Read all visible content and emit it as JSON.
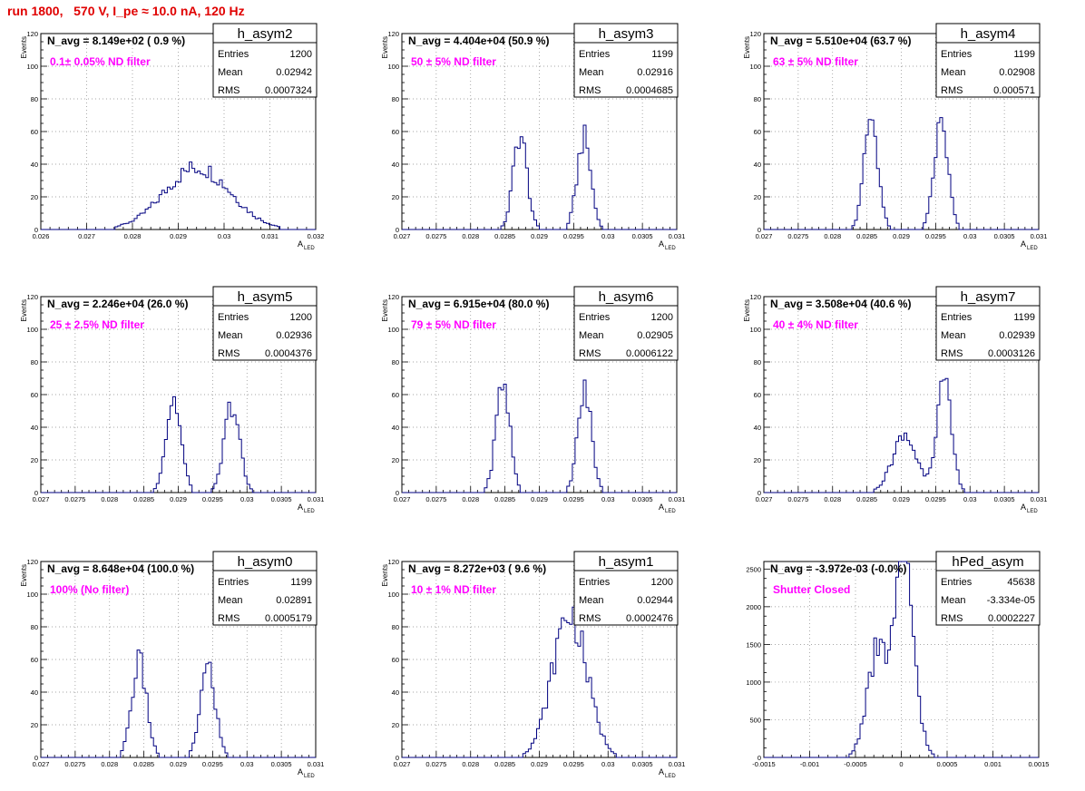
{
  "page": {
    "title": "run 1800,   570 V, I_pe ≈ 10.0 nA, 120 Hz"
  },
  "chart_data": [
    {
      "type": "histogram",
      "name": "h_asym2",
      "n_avg_label": "N_avg = 8.149e+02 ( 0.9 %)",
      "annotation": "0.1± 0.05% ND filter",
      "stats": [
        [
          "Entries",
          "1200"
        ],
        [
          "Mean",
          "0.02942"
        ],
        [
          "RMS",
          "0.0007324"
        ]
      ],
      "xlim": [
        0.026,
        0.032
      ],
      "ylim": [
        0,
        120
      ],
      "xticks": [
        0.026,
        0.027,
        0.028,
        0.029,
        0.03,
        0.031,
        0.032
      ],
      "xtick_labels": [
        "0.026",
        "0.027",
        "0.028",
        "0.029",
        "0.03",
        "0.031",
        "0.032"
      ],
      "yticks": [
        0,
        20,
        40,
        60,
        80,
        100,
        120
      ],
      "ytick_labels": [
        "0",
        "20",
        "40",
        "60",
        "80",
        "100",
        "120"
      ],
      "xlabel": "A",
      "xlabel_sub": "LED",
      "ylabel": "Events",
      "peaks": [
        {
          "mean": 0.02942,
          "sigma": 0.00072,
          "height": 38
        }
      ]
    },
    {
      "type": "histogram",
      "name": "h_asym3",
      "n_avg_label": "N_avg = 4.404e+04 (50.9 %)",
      "annotation": "50 ± 5% ND filter",
      "stats": [
        [
          "Entries",
          "1199"
        ],
        [
          "Mean",
          "0.02916"
        ],
        [
          "RMS",
          "0.0004685"
        ]
      ],
      "xlim": [
        0.027,
        0.031
      ],
      "ylim": [
        0,
        120
      ],
      "xticks": [
        0.027,
        0.0275,
        0.028,
        0.0285,
        0.029,
        0.0295,
        0.03,
        0.0305,
        0.031
      ],
      "xtick_labels": [
        "0.027",
        "0.0275",
        "0.028",
        "0.0285",
        "0.029",
        "0.0295",
        "0.03",
        "0.0305",
        "0.031"
      ],
      "yticks": [
        0,
        20,
        40,
        60,
        80,
        100,
        120
      ],
      "ytick_labels": [
        "0",
        "20",
        "40",
        "60",
        "80",
        "100",
        "120"
      ],
      "xlabel": "A",
      "xlabel_sub": "LED",
      "ylabel": "Events",
      "peaks": [
        {
          "mean": 0.02872,
          "sigma": 0.0001,
          "height": 58
        },
        {
          "mean": 0.02965,
          "sigma": 0.0001,
          "height": 56
        }
      ]
    },
    {
      "type": "histogram",
      "name": "h_asym4",
      "n_avg_label": "N_avg = 5.510e+04 (63.7 %)",
      "annotation": "63 ± 5% ND filter",
      "stats": [
        [
          "Entries",
          "1199"
        ],
        [
          "Mean",
          "0.02908"
        ],
        [
          "RMS",
          "0.000571"
        ]
      ],
      "xlim": [
        0.027,
        0.031
      ],
      "ylim": [
        0,
        120
      ],
      "xticks": [
        0.027,
        0.0275,
        0.028,
        0.0285,
        0.029,
        0.0295,
        0.03,
        0.0305,
        0.031
      ],
      "xtick_labels": [
        "0.027",
        "0.0275",
        "0.028",
        "0.0285",
        "0.029",
        "0.0295",
        "0.03",
        "0.0305",
        "0.031"
      ],
      "yticks": [
        0,
        20,
        40,
        60,
        80,
        100,
        120
      ],
      "ytick_labels": [
        "0",
        "20",
        "40",
        "60",
        "80",
        "100",
        "120"
      ],
      "xlabel": "A",
      "xlabel_sub": "LED",
      "ylabel": "Events",
      "peaks": [
        {
          "mean": 0.02856,
          "sigma": 0.0001,
          "height": 70
        },
        {
          "mean": 0.02958,
          "sigma": 0.0001,
          "height": 65
        }
      ]
    },
    {
      "type": "histogram",
      "name": "h_asym5",
      "n_avg_label": "N_avg = 2.246e+04 (26.0 %)",
      "annotation": "25 ± 2.5% ND filter",
      "stats": [
        [
          "Entries",
          "1200"
        ],
        [
          "Mean",
          "0.02936"
        ],
        [
          "RMS",
          "0.0004376"
        ]
      ],
      "xlim": [
        0.027,
        0.031
      ],
      "ylim": [
        0,
        120
      ],
      "xticks": [
        0.027,
        0.0275,
        0.028,
        0.0285,
        0.029,
        0.0295,
        0.03,
        0.0305,
        0.031
      ],
      "xtick_labels": [
        "0.027",
        "0.0275",
        "0.028",
        "0.0285",
        "0.029",
        "0.0295",
        "0.03",
        "0.0305",
        "0.031"
      ],
      "yticks": [
        0,
        20,
        40,
        60,
        80,
        100,
        120
      ],
      "ytick_labels": [
        "0",
        "20",
        "40",
        "60",
        "80",
        "100",
        "120"
      ],
      "xlabel": "A",
      "xlabel_sub": "LED",
      "ylabel": "Events",
      "peaks": [
        {
          "mean": 0.02893,
          "sigma": 0.00011,
          "height": 57
        },
        {
          "mean": 0.02978,
          "sigma": 0.00011,
          "height": 54
        }
      ]
    },
    {
      "type": "histogram",
      "name": "h_asym6",
      "n_avg_label": "N_avg = 6.915e+04 (80.0 %)",
      "annotation": "79 ± 5% ND filter",
      "stats": [
        [
          "Entries",
          "1200"
        ],
        [
          "Mean",
          "0.02905"
        ],
        [
          "RMS",
          "0.0006122"
        ]
      ],
      "xlim": [
        0.027,
        0.031
      ],
      "ylim": [
        0,
        120
      ],
      "xticks": [
        0.027,
        0.0275,
        0.028,
        0.0285,
        0.029,
        0.0295,
        0.03,
        0.0305,
        0.031
      ],
      "xtick_labels": [
        "0.027",
        "0.0275",
        "0.028",
        "0.0285",
        "0.029",
        "0.0295",
        "0.03",
        "0.0305",
        "0.031"
      ],
      "yticks": [
        0,
        20,
        40,
        60,
        80,
        100,
        120
      ],
      "ytick_labels": [
        "0",
        "20",
        "40",
        "60",
        "80",
        "100",
        "120"
      ],
      "xlabel": "A",
      "xlabel_sub": "LED",
      "ylabel": "Events",
      "peaks": [
        {
          "mean": 0.02847,
          "sigma": 0.0001,
          "height": 68
        },
        {
          "mean": 0.02966,
          "sigma": 0.0001,
          "height": 62
        }
      ]
    },
    {
      "type": "histogram",
      "name": "h_asym7",
      "n_avg_label": "N_avg = 3.508e+04 (40.6 %)",
      "annotation": "40 ± 4% ND filter",
      "stats": [
        [
          "Entries",
          "1199"
        ],
        [
          "Mean",
          "0.02939"
        ],
        [
          "RMS",
          "0.0003126"
        ]
      ],
      "xlim": [
        0.027,
        0.031
      ],
      "ylim": [
        0,
        120
      ],
      "xticks": [
        0.027,
        0.0275,
        0.028,
        0.0285,
        0.029,
        0.0295,
        0.03,
        0.0305,
        0.031
      ],
      "xtick_labels": [
        "0.027",
        "0.0275",
        "0.028",
        "0.0285",
        "0.029",
        "0.0295",
        "0.03",
        "0.0305",
        "0.031"
      ],
      "yticks": [
        0,
        20,
        40,
        60,
        80,
        100,
        120
      ],
      "ytick_labels": [
        "0",
        "20",
        "40",
        "60",
        "80",
        "100",
        "120"
      ],
      "xlabel": "A",
      "xlabel_sub": "LED",
      "ylabel": "Events",
      "peaks": [
        {
          "mean": 0.02905,
          "sigma": 0.00018,
          "height": 34
        },
        {
          "mean": 0.02962,
          "sigma": 0.00011,
          "height": 65
        }
      ]
    },
    {
      "type": "histogram",
      "name": "h_asym0",
      "n_avg_label": "N_avg = 8.648e+04 (100.0 %)",
      "annotation": "100% (No filter)",
      "stats": [
        [
          "Entries",
          "1199"
        ],
        [
          "Mean",
          "0.02891"
        ],
        [
          "RMS",
          "0.0005179"
        ]
      ],
      "xlim": [
        0.027,
        0.031
      ],
      "ylim": [
        0,
        120
      ],
      "xticks": [
        0.027,
        0.0275,
        0.028,
        0.0285,
        0.029,
        0.0295,
        0.03,
        0.0305,
        0.031
      ],
      "xtick_labels": [
        "0.027",
        "0.0275",
        "0.028",
        "0.0285",
        "0.029",
        "0.0295",
        "0.03",
        "0.0305",
        "0.031"
      ],
      "yticks": [
        0,
        20,
        40,
        60,
        80,
        100,
        120
      ],
      "ytick_labels": [
        "0",
        "20",
        "40",
        "60",
        "80",
        "100",
        "120"
      ],
      "xlabel": "A",
      "xlabel_sub": "LED",
      "ylabel": "Events",
      "peaks": [
        {
          "mean": 0.02843,
          "sigma": 0.00011,
          "height": 58
        },
        {
          "mean": 0.02943,
          "sigma": 0.00011,
          "height": 55
        }
      ]
    },
    {
      "type": "histogram",
      "name": "h_asym1",
      "n_avg_label": "N_avg = 8.272e+03 ( 9.6 %)",
      "annotation": "10 ± 1% ND filter",
      "stats": [
        [
          "Entries",
          "1200"
        ],
        [
          "Mean",
          "0.02944"
        ],
        [
          "RMS",
          "0.0002476"
        ]
      ],
      "xlim": [
        0.027,
        0.031
      ],
      "ylim": [
        0,
        120
      ],
      "xticks": [
        0.027,
        0.0275,
        0.028,
        0.0285,
        0.029,
        0.0295,
        0.03,
        0.0305,
        0.031
      ],
      "xtick_labels": [
        "0.027",
        "0.0275",
        "0.028",
        "0.0285",
        "0.029",
        "0.0295",
        "0.03",
        "0.0305",
        "0.031"
      ],
      "yticks": [
        0,
        20,
        40,
        60,
        80,
        100,
        120
      ],
      "ytick_labels": [
        "0",
        "20",
        "40",
        "60",
        "80",
        "100",
        "120"
      ],
      "xlabel": "A",
      "xlabel_sub": "LED",
      "ylabel": "Events",
      "peaks": [
        {
          "mean": 0.02944,
          "sigma": 0.00025,
          "height": 88
        }
      ]
    },
    {
      "type": "histogram",
      "name": "hPed_asym",
      "n_avg_label": "N_avg = -3.972e-03 (-0.0%)",
      "annotation": "Shutter Closed",
      "stats": [
        [
          "Entries",
          "45638"
        ],
        [
          "Mean",
          "-3.334e-05"
        ],
        [
          "RMS",
          "0.0002227"
        ]
      ],
      "xlim": [
        -0.0015,
        0.0015
      ],
      "ylim": [
        0,
        2600
      ],
      "xticks": [
        -0.0015,
        -0.001,
        -0.0005,
        0,
        0.0005,
        0.001,
        0.0015
      ],
      "xtick_labels": [
        "-0.0015",
        "-0.001",
        "-0.0005",
        "0",
        "0.0005",
        "0.001",
        "0.0015"
      ],
      "yticks": [
        0,
        500,
        1000,
        1500,
        2000,
        2500
      ],
      "ytick_labels": [
        "0",
        "500",
        "1000",
        "1500",
        "2000",
        "2500"
      ],
      "xlabel": "",
      "xlabel_sub": "",
      "ylabel": "",
      "peaks": [
        {
          "mean": -0.00027,
          "sigma": 0.00011,
          "height": 1350
        },
        {
          "mean": 3e-05,
          "sigma": 0.00011,
          "height": 2550
        }
      ]
    }
  ],
  "colors": {
    "title": "#e00000",
    "annotation": "#ff00ff",
    "histogram": "#000080",
    "grid": "#888888",
    "axis": "#000000"
  }
}
